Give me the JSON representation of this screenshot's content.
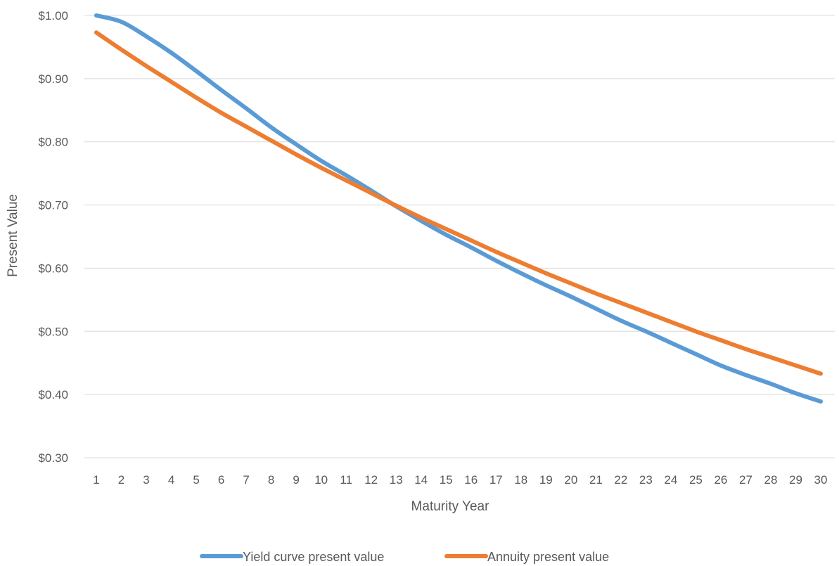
{
  "chart_data": {
    "type": "line",
    "title": "",
    "xlabel": "Maturity Year",
    "ylabel": "Present Value",
    "x": [
      1,
      2,
      3,
      4,
      5,
      6,
      7,
      8,
      9,
      10,
      11,
      12,
      13,
      14,
      15,
      16,
      17,
      18,
      19,
      20,
      21,
      22,
      23,
      24,
      25,
      26,
      27,
      28,
      29,
      30
    ],
    "ylim": [
      0.3,
      1.0
    ],
    "yticks": [
      1.0,
      0.9,
      0.8,
      0.7,
      0.6,
      0.5,
      0.4,
      0.3
    ],
    "ytick_labels": [
      "$1.00",
      "$0.90",
      "$0.80",
      "$0.70",
      "$0.60",
      "$0.50",
      "$0.40",
      "$0.30"
    ],
    "xtick_labels": [
      "1",
      "2",
      "3",
      "4",
      "5",
      "6",
      "7",
      "8",
      "9",
      "10",
      "11",
      "12",
      "13",
      "14",
      "15",
      "16",
      "17",
      "18",
      "19",
      "20",
      "21",
      "22",
      "23",
      "24",
      "25",
      "26",
      "27",
      "28",
      "29",
      "30"
    ],
    "grid": true,
    "legend_position": "bottom",
    "series": [
      {
        "name": "Yield curve present value",
        "color": "#5b9bd5",
        "values": [
          1.0,
          0.99,
          0.967,
          0.941,
          0.912,
          0.882,
          0.853,
          0.823,
          0.796,
          0.77,
          0.747,
          0.723,
          0.698,
          0.675,
          0.653,
          0.633,
          0.612,
          0.592,
          0.573,
          0.555,
          0.536,
          0.517,
          0.5,
          0.482,
          0.464,
          0.446,
          0.431,
          0.417,
          0.402,
          0.389
        ]
      },
      {
        "name": "Annuity present value",
        "color": "#ed7d31",
        "values": [
          0.973,
          0.946,
          0.92,
          0.895,
          0.87,
          0.846,
          0.824,
          0.802,
          0.78,
          0.759,
          0.739,
          0.719,
          0.699,
          0.68,
          0.662,
          0.644,
          0.626,
          0.609,
          0.592,
          0.576,
          0.56,
          0.545,
          0.53,
          0.515,
          0.5,
          0.486,
          0.472,
          0.459,
          0.446,
          0.433
        ]
      }
    ]
  }
}
